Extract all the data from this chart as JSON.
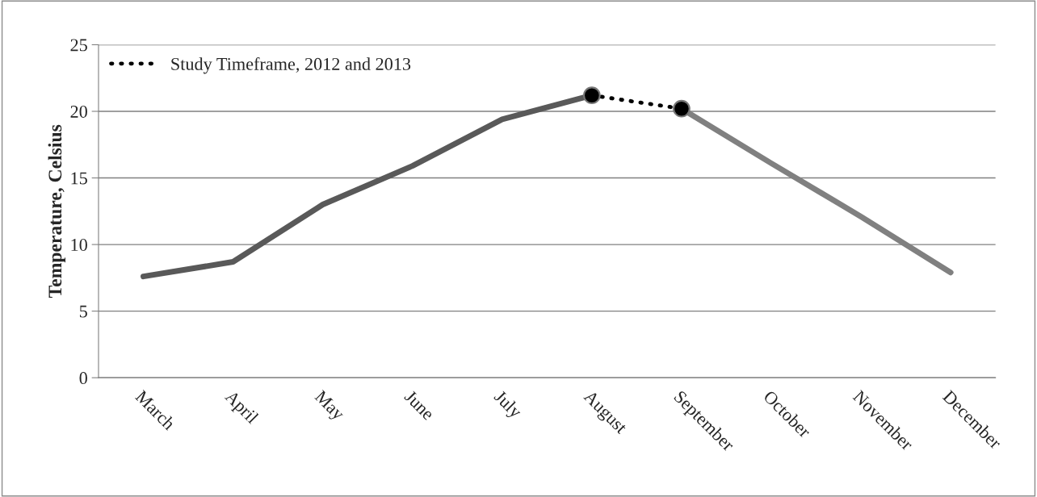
{
  "chart_data": {
    "type": "line",
    "ylabel": "Temperature, Celsius",
    "categories": [
      "March",
      "April",
      "May",
      "June",
      "July",
      "August",
      "September",
      "October",
      "November",
      "December"
    ],
    "series": [
      {
        "color": "#595959",
        "values": [
          7.6,
          8.7,
          13.0,
          15.9,
          19.4,
          21.2,
          null,
          null,
          null,
          null
        ],
        "line_style": "solid",
        "marker": "none"
      },
      {
        "name": "Study Timeframe, 2012 and 2013",
        "color": "#000000",
        "values": [
          null,
          null,
          null,
          null,
          null,
          21.2,
          20.2,
          null,
          null,
          null
        ],
        "line_style": "dotted",
        "marker": "circle"
      },
      {
        "color": "#808080",
        "values": [
          null,
          null,
          null,
          null,
          null,
          null,
          20.2,
          16.1,
          12.1,
          7.9
        ],
        "line_style": "solid",
        "marker": "none"
      }
    ],
    "ylim": [
      0,
      25
    ],
    "yticks": [
      0,
      5,
      10,
      15,
      20,
      25
    ],
    "grid": "y",
    "legend": "top left"
  }
}
